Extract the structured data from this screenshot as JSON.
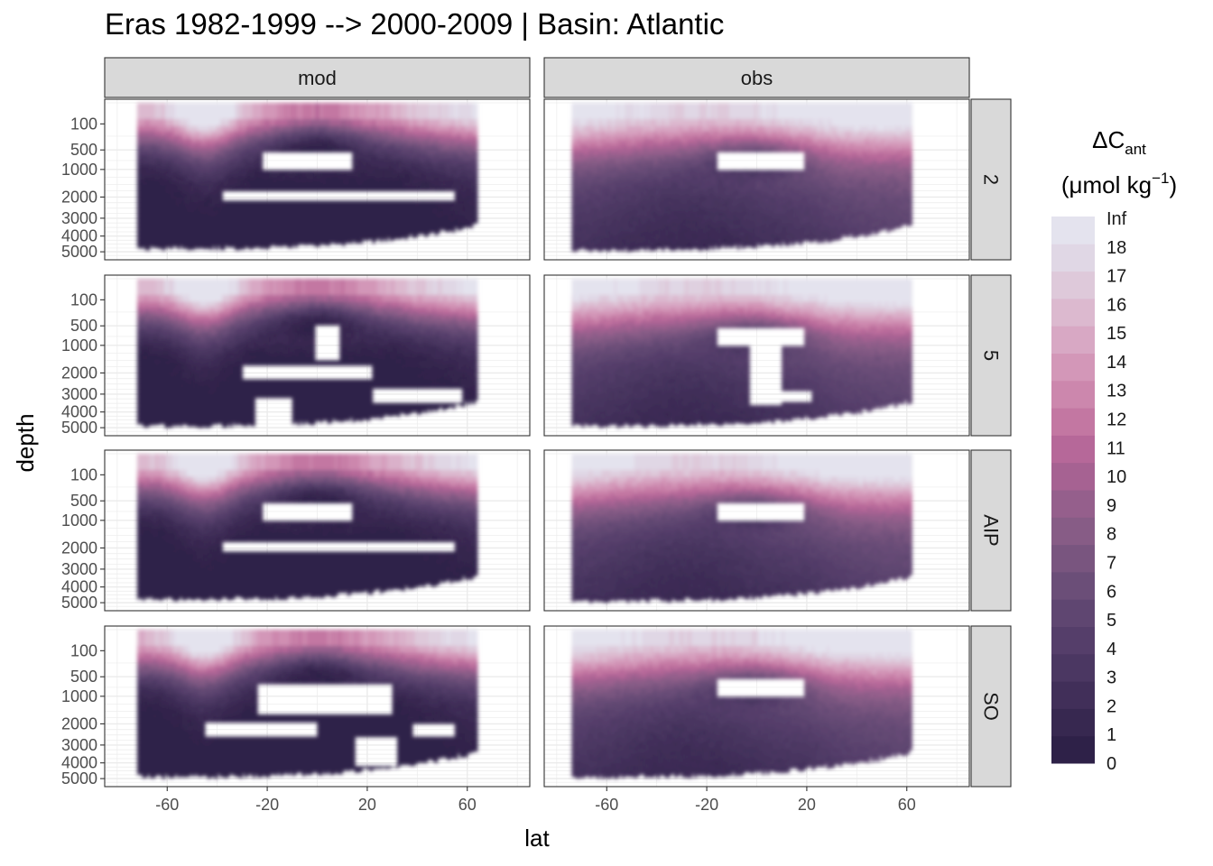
{
  "title": "Eras 1982-1999 --> 2000-2009 | Basin: Atlantic",
  "chart_data": {
    "type": "heatmap",
    "subtype": "faceted filled contour sections",
    "title": "Eras 1982-1999 --> 2000-2009 | Basin: Atlantic",
    "xlabel": "lat",
    "ylabel": "depth",
    "x_ticks": [
      -60,
      -20,
      20,
      60
    ],
    "xlim": [
      -85,
      85
    ],
    "y_ticks": [
      100,
      500,
      1000,
      2000,
      3000,
      4000,
      5000
    ],
    "y_scale": "reversed square-root (depth increases downward)",
    "ylim": [
      0,
      5300
    ],
    "grid": true,
    "facet_columns": [
      "mod",
      "obs"
    ],
    "facet_rows": [
      "2",
      "5",
      "AIP",
      "SO"
    ],
    "legend": {
      "title_main": "ΔC",
      "title_sub": "ant",
      "units_prefix": "(μmol kg",
      "units_sup": "−1",
      "units_suffix": ")",
      "position": "right",
      "levels": [
        "0",
        "1",
        "2",
        "3",
        "4",
        "5",
        "6",
        "7",
        "8",
        "9",
        "10",
        "11",
        "12",
        "13",
        "14",
        "15",
        "16",
        "17",
        "18",
        "Inf"
      ],
      "colors": [
        "#2e2148",
        "#372850",
        "#412f59",
        "#4b3762",
        "#553e6a",
        "#5f4671",
        "#6b4e78",
        "#79557f",
        "#875c86",
        "#955f8c",
        "#a66292",
        "#b66899",
        "#c377a2",
        "#cc87ad",
        "#d397b8",
        "#d8a8c4",
        "#dcb9cf",
        "#dec9da",
        "#e0d7e5",
        "#e4e3ee"
      ]
    },
    "panels": [
      {
        "model": "mod",
        "row": "2",
        "lat_range": [
          -72,
          64
        ],
        "depth_bottom_range": [
          3500,
          4900
        ],
        "gaps": [
          "~-20 to 15 lat at ~500-1000 m",
          "~-35 to 55 lat at ~1800-2000 m"
        ]
      },
      {
        "model": "obs",
        "row": "2",
        "lat_range": [
          -74,
          62
        ],
        "depth_bottom_range": [
          3500,
          5000
        ],
        "gaps": [
          "~-15 to 20 lat at ~500-1000 m"
        ]
      },
      {
        "model": "mod",
        "row": "5",
        "lat_range": [
          -72,
          64
        ],
        "depth_bottom_range": [
          3500,
          5000
        ],
        "gaps": [
          "~0 to 10 lat at ~500-1500 m",
          "broad region ~-20 to 60 lat below ~1800 m"
        ]
      },
      {
        "model": "obs",
        "row": "5",
        "lat_range": [
          -74,
          62
        ],
        "depth_bottom_range": [
          3500,
          5000
        ],
        "gaps": [
          "~-5 to 20 lat at ~500-3500 m"
        ]
      },
      {
        "model": "mod",
        "row": "AIP",
        "lat_range": [
          -72,
          64
        ],
        "depth_bottom_range": [
          3500,
          4900
        ],
        "gaps": [
          "~-20 to 15 lat at ~500-1000 m",
          "~-35 to 55 lat at ~1800-2000 m"
        ]
      },
      {
        "model": "obs",
        "row": "AIP",
        "lat_range": [
          -74,
          62
        ],
        "depth_bottom_range": [
          3500,
          5000
        ],
        "gaps": [
          "~-15 to 20 lat at ~500-1000 m"
        ]
      },
      {
        "model": "mod",
        "row": "SO",
        "lat_range": [
          -72,
          64
        ],
        "depth_bottom_range": [
          3500,
          5000
        ],
        "gaps": [
          "scattered regions ~-40 to 55 lat below ~800 m"
        ]
      },
      {
        "model": "obs",
        "row": "SO",
        "lat_range": [
          -74,
          62
        ],
        "depth_bottom_range": [
          3500,
          5000
        ],
        "gaps": [
          "~-15 to 20 lat at ~500-1000 m"
        ]
      }
    ]
  }
}
